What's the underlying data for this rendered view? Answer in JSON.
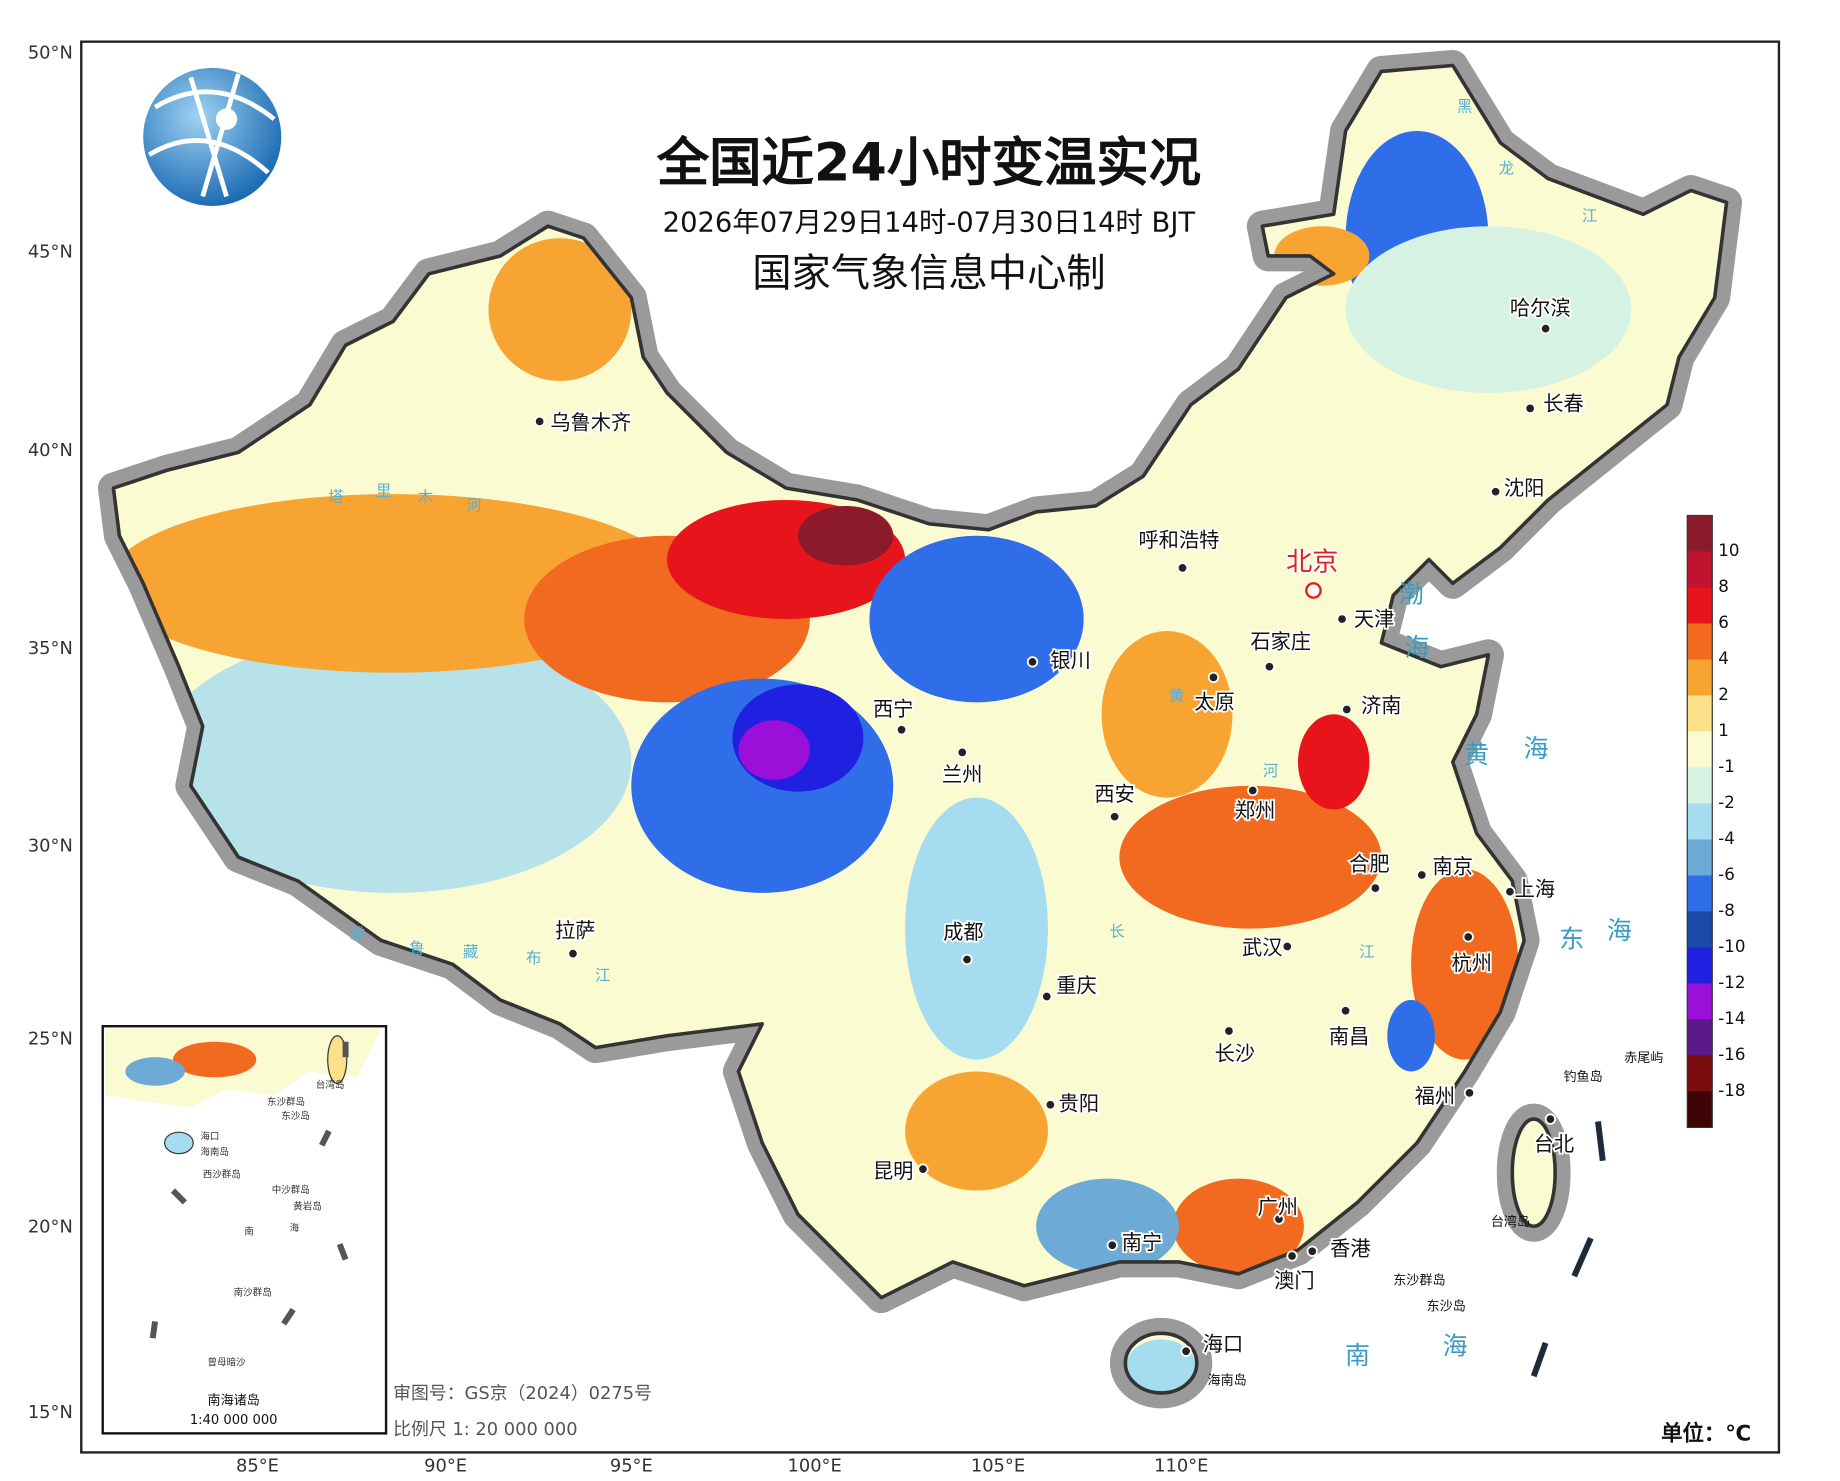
{
  "header": {
    "title": "全国近24小时变温实况",
    "subtitle": "2026年07月29日14时-07月30日14时 BJT",
    "producer": "国家气象信息中心制"
  },
  "lat_labels": [
    "50°N",
    "45°N",
    "40°N",
    "35°N",
    "30°N",
    "25°N",
    "20°N",
    "15°N"
  ],
  "lon_labels": [
    "85°E",
    "90°E",
    "95°E",
    "100°E",
    "105°E",
    "110°E"
  ],
  "cities": [
    "乌鲁木齐",
    "呼和浩特",
    "北京",
    "天津",
    "石家庄",
    "银川",
    "太原",
    "济南",
    "西宁",
    "兰州",
    "西安",
    "郑州",
    "合肥",
    "南京",
    "上海",
    "拉萨",
    "成都",
    "武汉",
    "杭州",
    "重庆",
    "长沙",
    "南昌",
    "福州",
    "贵阳",
    "昆明",
    "台北",
    "南宁",
    "广州",
    "香港",
    "澳门",
    "海口",
    "哈尔滨",
    "长春",
    "沈阳"
  ],
  "islands": [
    "海南岛",
    "台湾岛",
    "钓鱼岛",
    "赤尾屿",
    "东沙群岛",
    "东沙岛"
  ],
  "sea_labels": [
    "渤",
    "海",
    "黄",
    "海",
    "东",
    "海",
    "南",
    "海"
  ],
  "river_labels": [
    "塔",
    "里",
    "木",
    "河",
    "雅",
    "鲁",
    "藏",
    "布",
    "江",
    "黑",
    "龙",
    "江",
    "黄",
    "河",
    "长",
    "江"
  ],
  "inset": {
    "title": "南海诸岛",
    "scale": "1:40 000 000",
    "labels": [
      "台湾岛",
      "海口",
      "海南岛",
      "东沙群岛",
      "东沙岛",
      "西沙群岛",
      "中沙群岛",
      "黄岩岛",
      "南",
      "海",
      "南沙群岛",
      "曾母暗沙"
    ]
  },
  "footer": {
    "review_no": "审图号：GS京（2024）0275号",
    "scale": "比例尺 1: 20 000 000",
    "unit": "单位：℃"
  },
  "legend": {
    "ticks": [
      10,
      8,
      6,
      4,
      2,
      1,
      -1,
      -2,
      -4,
      -6,
      -8,
      -10,
      -12,
      -14,
      -16,
      -18
    ],
    "colors": [
      "#8b1a2b",
      "#c1122f",
      "#e8141c",
      "#f26a1f",
      "#f8a433",
      "#fde08a",
      "#fbfbd1",
      "#d6f2e2",
      "#a6dcef",
      "#6eaad6",
      "#2f6ee8",
      "#1a4aa8",
      "#2020e0",
      "#9b10d8",
      "#5a1a8a",
      "#7a0e0e",
      "#3d0505"
    ]
  }
}
